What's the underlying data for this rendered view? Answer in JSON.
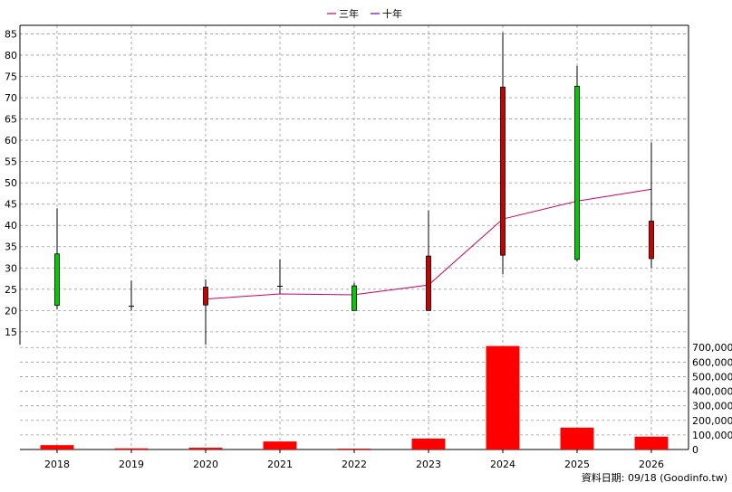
{
  "legend": [
    {
      "label": "三年",
      "color": "#cc0066"
    },
    {
      "label": "十年",
      "color": "#6600cc"
    }
  ],
  "footer": "資料日期: 09/18  (Goodinfo.tw)",
  "colors": {
    "up": "#00cc00",
    "down": "#cc0000",
    "volume": "#ff0000",
    "grid": "#999999",
    "line": "#cc0066"
  },
  "chart_data": [
    {
      "type": "candlestick",
      "categories": [
        "2018",
        "2019",
        "2020",
        "2021",
        "2022",
        "2023",
        "2024",
        "2025",
        "2026"
      ],
      "ylim": [
        12,
        87
      ],
      "y_ticks": [
        15,
        20,
        25,
        30,
        35,
        40,
        45,
        50,
        55,
        60,
        65,
        70,
        75,
        80,
        85
      ],
      "grid": true,
      "candles": [
        {
          "x": "2018",
          "open": 21.2,
          "close": 33.3,
          "high": 44.0,
          "low": 20.3
        },
        {
          "x": "2019",
          "open": 21.0,
          "close": 21.0,
          "high": 27.0,
          "low": 20.0
        },
        {
          "x": "2020",
          "open": 25.5,
          "close": 21.3,
          "high": 27.3,
          "low": 12.0
        },
        {
          "x": "2021",
          "open": 25.7,
          "close": 25.7,
          "high": 32.0,
          "low": 24.0
        },
        {
          "x": "2022",
          "open": 20.0,
          "close": 25.8,
          "high": 26.5,
          "low": 20.0
        },
        {
          "x": "2023",
          "open": 32.8,
          "close": 20.0,
          "high": 43.5,
          "low": 20.0
        },
        {
          "x": "2024",
          "open": 72.5,
          "close": 33.0,
          "high": 85.3,
          "low": 28.5
        },
        {
          "x": "2025",
          "open": 32.0,
          "close": 72.7,
          "high": 77.5,
          "low": 31.5
        },
        {
          "x": "2026",
          "open": 41.0,
          "close": 32.2,
          "high": 59.5,
          "low": 30.0
        }
      ],
      "series": [
        {
          "name": "三年",
          "x": [
            "2020",
            "2021",
            "2022",
            "2023",
            "2024",
            "2025",
            "2026"
          ],
          "values": [
            22.7,
            23.9,
            23.7,
            26.0,
            41.5,
            45.7,
            48.5
          ]
        }
      ]
    },
    {
      "type": "bar",
      "categories": [
        "2018",
        "2019",
        "2020",
        "2021",
        "2022",
        "2023",
        "2024",
        "2025",
        "2026"
      ],
      "values": [
        30000,
        8000,
        12000,
        55000,
        6000,
        75000,
        710000,
        150000,
        88000
      ],
      "ylim": [
        0,
        720000
      ],
      "y_tick_values": [
        0,
        100000,
        200000,
        300000,
        400000,
        500000,
        600000,
        700000
      ],
      "y_tick_labels": [
        "0",
        "100,000",
        "200,000",
        "300,000",
        "400,000",
        "500,000",
        "600,000",
        "700,000"
      ],
      "grid": true
    }
  ]
}
